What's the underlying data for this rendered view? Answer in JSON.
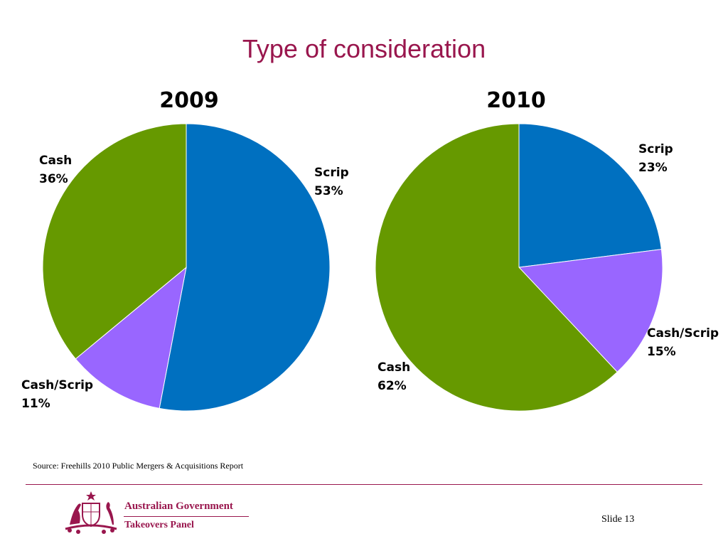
{
  "slide_title": "Type of consideration",
  "colors": {
    "scrip": "#0070c0",
    "cash": "#669900",
    "cash_scrip": "#9966ff",
    "accent": "#99164d"
  },
  "chart_data": [
    {
      "type": "pie",
      "title": "2009",
      "slices": [
        {
          "label": "Scrip",
          "value": 53,
          "value_label": "53%",
          "color": "#0070c0"
        },
        {
          "label": "Cash/Scrip",
          "value": 11,
          "value_label": "11%",
          "color": "#9966ff"
        },
        {
          "label": "Cash",
          "value": 36,
          "value_label": "36%",
          "color": "#669900"
        }
      ]
    },
    {
      "type": "pie",
      "title": "2010",
      "slices": [
        {
          "label": "Scrip",
          "value": 23,
          "value_label": "23%",
          "color": "#0070c0"
        },
        {
          "label": "Cash/Scrip",
          "value": 15,
          "value_label": "15%",
          "color": "#9966ff"
        },
        {
          "label": "Cash",
          "value": 62,
          "value_label": "62%",
          "color": "#669900"
        }
      ]
    }
  ],
  "source": "Source: Freehills 2010 Public Mergers & Acquisitions Report",
  "footer": {
    "org_line1": "Australian Government",
    "org_line2": "Takeovers Panel",
    "logo_icon": "coat-of-arms-icon",
    "slide_label": "Slide 13"
  }
}
